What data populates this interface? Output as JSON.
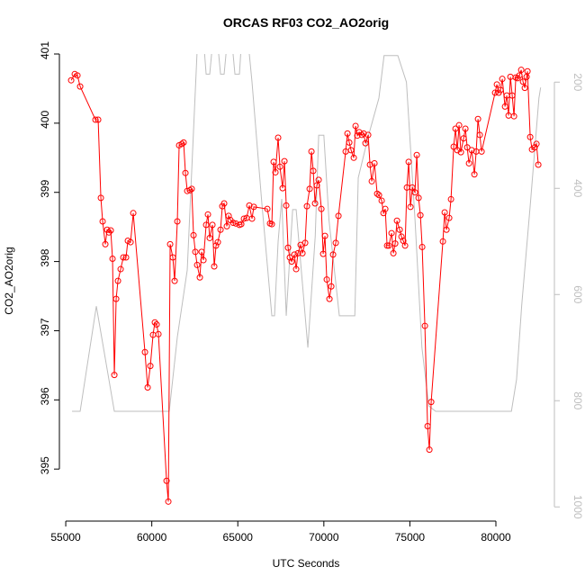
{
  "chart_data": {
    "type": "line",
    "title": "ORCAS RF03 CO2_AO2orig",
    "x_label": "UTC Seconds",
    "y_label": "CO2_AO2orig",
    "xlim": [
      54840,
      83190
    ],
    "ylim": [
      394.43,
      401.0
    ],
    "y2lim": [
      147,
      1003
    ],
    "y2_reversed": true,
    "xticks": [
      55000,
      60000,
      65000,
      70000,
      75000,
      80000
    ],
    "yticks": [
      395,
      396,
      397,
      398,
      399,
      400,
      401
    ],
    "y2ticks": [
      200,
      400,
      600,
      800,
      1000
    ],
    "x": [
      55314,
      55523,
      55680,
      55837,
      56726,
      56883,
      57040,
      57144,
      57301,
      57405,
      57510,
      57615,
      57719,
      57824,
      57929,
      58033,
      58190,
      58347,
      58504,
      58609,
      58766,
      58923,
      59603,
      59760,
      59916,
      60073,
      60178,
      60282,
      60387,
      60858,
      60962,
      61067,
      61224,
      61328,
      61485,
      61590,
      61747,
      61851,
      61956,
      62061,
      62218,
      62322,
      62427,
      62531,
      62636,
      62793,
      62897,
      63002,
      63159,
      63263,
      63368,
      63525,
      63630,
      63734,
      63839,
      63996,
      64100,
      64205,
      64362,
      64467,
      64571,
      64728,
      64885,
      65094,
      65199,
      65356,
      65513,
      65669,
      65826,
      65931,
      66715,
      66872,
      66977,
      67082,
      67187,
      67343,
      67448,
      67605,
      67710,
      67815,
      67919,
      68024,
      68129,
      68286,
      68390,
      68495,
      68652,
      68757,
      68914,
      69018,
      69175,
      69280,
      69384,
      69489,
      69594,
      69699,
      69856,
      69960,
      70065,
      70170,
      70326,
      70431,
      70536,
      70693,
      70850,
      71268,
      71373,
      71478,
      71582,
      71739,
      71844,
      71948,
      72053,
      72210,
      72315,
      72419,
      72576,
      72681,
      72785,
      72942,
      73099,
      73204,
      73361,
      73465,
      73570,
      73675,
      73779,
      73936,
      74041,
      74146,
      74250,
      74407,
      74512,
      74616,
      74721,
      74826,
      74930,
      75035,
      75140,
      75297,
      75401,
      75506,
      75611,
      75715,
      75872,
      76029,
      76134,
      76238,
      76918,
      77023,
      77127,
      77284,
      77389,
      77546,
      77651,
      77755,
      77860,
      77965,
      78122,
      78226,
      78331,
      78436,
      78593,
      78750,
      78854,
      78959,
      79064,
      79168,
      79953,
      80057,
      80162,
      80267,
      80371,
      80528,
      80633,
      80737,
      80842,
      80947,
      81051,
      81156,
      81261,
      81365,
      81470,
      81575,
      81679,
      81784,
      81836,
      81993,
      82098,
      82255,
      82359,
      82464
    ],
    "series": [
      {
        "color": "#ff0000",
        "marker": "circle",
        "values": [
          400.62,
          400.71,
          400.69,
          400.53,
          400.05,
          400.05,
          398.92,
          398.58,
          398.25,
          398.46,
          398.42,
          398.45,
          398.04,
          396.36,
          397.46,
          397.72,
          397.89,
          398.06,
          398.06,
          398.3,
          398.28,
          398.7,
          396.69,
          396.18,
          396.49,
          396.94,
          397.12,
          397.09,
          396.95,
          394.83,
          394.53,
          398.25,
          398.06,
          397.72,
          398.58,
          399.68,
          399.7,
          399.72,
          399.28,
          399.02,
          399.03,
          399.05,
          398.38,
          398.14,
          397.95,
          397.77,
          398.14,
          398.02,
          398.53,
          398.68,
          398.34,
          398.53,
          397.93,
          398.23,
          398.28,
          398.46,
          398.8,
          398.84,
          398.51,
          398.66,
          398.6,
          398.56,
          398.55,
          398.53,
          398.54,
          398.62,
          398.63,
          398.81,
          398.62,
          398.79,
          398.76,
          398.55,
          398.54,
          399.44,
          399.29,
          399.79,
          399.37,
          399.06,
          399.45,
          398.81,
          398.2,
          398.06,
          398.0,
          398.1,
          397.89,
          398.12,
          398.24,
          398.12,
          398.27,
          398.8,
          399.05,
          399.59,
          399.31,
          398.84,
          399.1,
          399.18,
          398.76,
          398.11,
          398.37,
          397.74,
          397.46,
          397.64,
          398.1,
          398.27,
          398.66,
          399.59,
          399.85,
          399.72,
          399.61,
          399.5,
          399.96,
          399.82,
          399.87,
          399.83,
          399.85,
          399.71,
          399.83,
          399.4,
          399.16,
          399.42,
          398.98,
          398.96,
          398.88,
          398.7,
          398.76,
          398.23,
          398.23,
          398.41,
          398.12,
          398.26,
          398.59,
          398.46,
          398.36,
          398.3,
          398.23,
          399.07,
          399.44,
          398.79,
          399.07,
          399.0,
          399.54,
          398.92,
          398.67,
          398.21,
          397.07,
          395.62,
          395.28,
          395.97,
          398.29,
          398.71,
          398.46,
          398.63,
          398.9,
          399.66,
          399.92,
          399.61,
          399.97,
          399.58,
          399.78,
          399.92,
          399.65,
          399.42,
          399.61,
          399.26,
          399.59,
          400.06,
          399.83,
          399.59,
          400.44,
          400.56,
          400.44,
          400.48,
          400.64,
          400.24,
          400.4,
          400.11,
          400.67,
          400.4,
          400.1,
          400.66,
          400.65,
          400.69,
          400.77,
          400.6,
          400.51,
          400.67,
          400.75,
          399.8,
          399.62,
          399.65,
          399.7,
          399.4
        ]
      },
      {
        "color": "#bebebe",
        "axis": "y2",
        "x": [
          55366,
          55837,
          56778,
          57824,
          61015,
          61485,
          62061,
          62636,
          63054,
          63159,
          63368,
          63525,
          63839,
          63996,
          64205,
          64362,
          64676,
          64833,
          65094,
          65199,
          65617,
          65826,
          66402,
          66977,
          67134,
          67343,
          67553,
          67815,
          68186,
          68391,
          69071,
          69500,
          69700,
          70000,
          70300,
          70900,
          71800,
          72000,
          72600,
          73200,
          73500,
          74300,
          74800,
          75300,
          75700,
          76100,
          76500,
          80900,
          81200,
          81500,
          82000,
          82500,
          82600
        ],
        "values": [
          820,
          820,
          622,
          820,
          820,
          680,
          554,
          140,
          140,
          185,
          185,
          130,
          130,
          185,
          185,
          130,
          130,
          185,
          185,
          130,
          130,
          200,
          430,
          640,
          640,
          500,
          420,
          640,
          440,
          440,
          700,
          490,
          300,
          300,
          460,
          640,
          640,
          380,
          300,
          230,
          150,
          150,
          200,
          460,
          700,
          810,
          820,
          820,
          760,
          620,
          430,
          230,
          210
        ]
      }
    ]
  }
}
